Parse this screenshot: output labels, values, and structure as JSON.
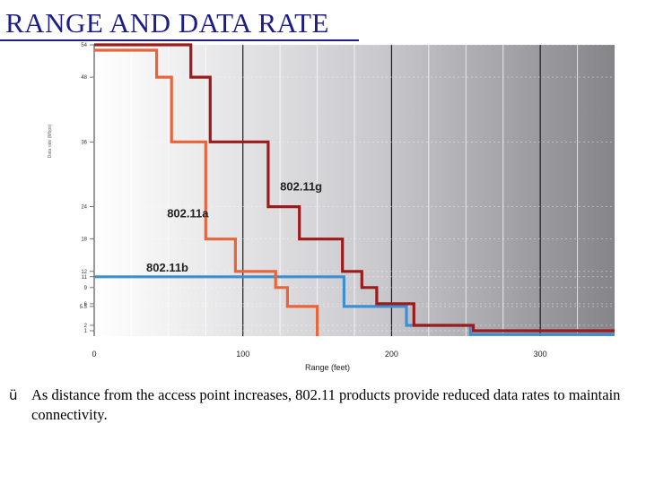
{
  "title": "RANGE AND DATA RATE",
  "note": {
    "bullet_icon": "check-icon",
    "bullet_glyph": "ü",
    "text": "As distance from the access point increases, 802.11 products provide reduced data rates to maintain connectivity."
  },
  "colors": {
    "title": "#1c1c8c",
    "g": "#9c1b1b",
    "a": "#e8643a",
    "b": "#3d8fd4"
  },
  "chart_data": {
    "type": "line",
    "step": true,
    "title": "",
    "xlabel": "Range (feet)",
    "ylabel": "Data rate (Mbps)",
    "xlim": [
      0,
      350
    ],
    "ylim": [
      0,
      54
    ],
    "x_ticks": [
      0,
      100,
      200,
      300
    ],
    "y_ticks": [
      1,
      2,
      5.5,
      6,
      9,
      11,
      12,
      18,
      24,
      36,
      48,
      54
    ],
    "grid": true,
    "series": [
      {
        "name": "802.11g",
        "color": "#9c1b1b",
        "points": [
          [
            0,
            54
          ],
          [
            65,
            54
          ],
          [
            65,
            48
          ],
          [
            78,
            48
          ],
          [
            78,
            36
          ],
          [
            117,
            36
          ],
          [
            117,
            24
          ],
          [
            138,
            24
          ],
          [
            138,
            18
          ],
          [
            167,
            18
          ],
          [
            167,
            12
          ],
          [
            180,
            12
          ],
          [
            180,
            9
          ],
          [
            190,
            9
          ],
          [
            190,
            6
          ],
          [
            215,
            6
          ],
          [
            215,
            2
          ],
          [
            255,
            2
          ],
          [
            255,
            1
          ],
          [
            350,
            1
          ]
        ]
      },
      {
        "name": "802.11a",
        "color": "#e8643a",
        "points": [
          [
            0,
            53
          ],
          [
            42,
            53
          ],
          [
            42,
            48
          ],
          [
            52,
            48
          ],
          [
            52,
            36
          ],
          [
            75,
            36
          ],
          [
            75,
            18
          ],
          [
            95,
            18
          ],
          [
            95,
            12
          ],
          [
            122,
            12
          ],
          [
            122,
            9
          ],
          [
            130,
            9
          ],
          [
            130,
            5.5
          ],
          [
            150,
            5.5
          ],
          [
            150,
            0
          ]
        ]
      },
      {
        "name": "802.11b",
        "color": "#3d8fd4",
        "points": [
          [
            0,
            11
          ],
          [
            168,
            11
          ],
          [
            168,
            5.5
          ],
          [
            210,
            5.5
          ],
          [
            210,
            2
          ],
          [
            253,
            2
          ],
          [
            253,
            0.3
          ],
          [
            350,
            0.3
          ]
        ]
      }
    ],
    "annotations": [
      {
        "text": "802.11g",
        "x": 125,
        "y": 27
      },
      {
        "text": "802.11a",
        "x": 49,
        "y": 22
      },
      {
        "text": "802.11b",
        "x": 35,
        "y": 12
      }
    ]
  }
}
